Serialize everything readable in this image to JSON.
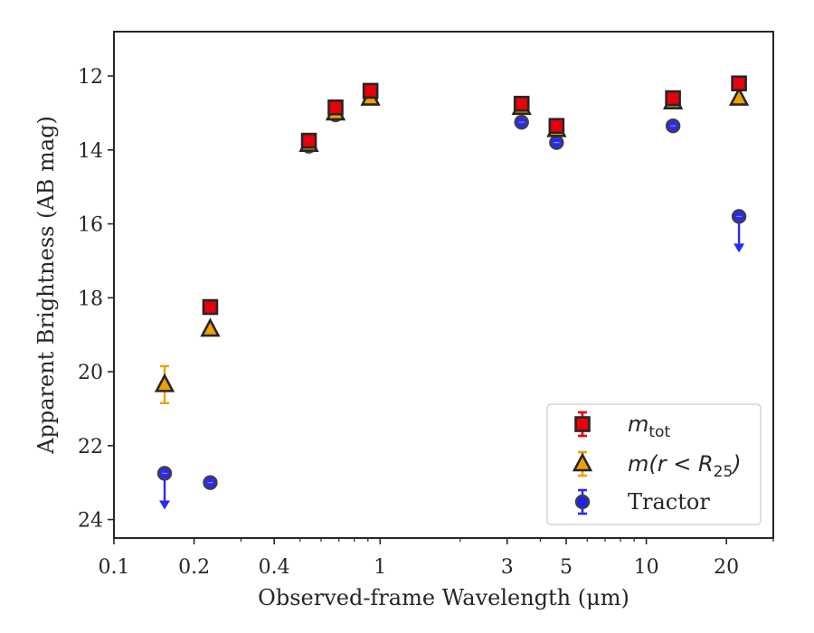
{
  "chart_data": {
    "type": "scatter",
    "xlabel": "Observed-frame Wavelength (μm)",
    "ylabel": "Apparent Brightness (AB mag)",
    "x_scale": "log",
    "xlim": [
      0.1,
      30
    ],
    "ylim": [
      24.5,
      10.8
    ],
    "y_inverted": true,
    "x_ticks": [
      {
        "value": 0.1,
        "label": "0.1"
      },
      {
        "value": 0.2,
        "label": "0.2"
      },
      {
        "value": 0.4,
        "label": "0.4"
      },
      {
        "value": 1,
        "label": "1"
      },
      {
        "value": 3,
        "label": "3"
      },
      {
        "value": 5,
        "label": "5"
      },
      {
        "value": 10,
        "label": "10"
      },
      {
        "value": 20,
        "label": "20"
      }
    ],
    "y_ticks": [
      12,
      14,
      16,
      18,
      20,
      22,
      24
    ],
    "grid": false,
    "legend_position": "bottom-right",
    "series": [
      {
        "name": "m_tot",
        "marker": "square",
        "color": "#e8000b",
        "edge_color": "#262626",
        "error_color": "#e8000b",
        "points": [
          {
            "x": 0.23,
            "y": 18.25
          },
          {
            "x": 0.54,
            "y": 13.75
          },
          {
            "x": 0.68,
            "y": 12.85
          },
          {
            "x": 0.92,
            "y": 12.4
          },
          {
            "x": 3.4,
            "y": 12.75
          },
          {
            "x": 4.6,
            "y": 13.35
          },
          {
            "x": 12.6,
            "y": 12.6
          },
          {
            "x": 22.3,
            "y": 12.2
          }
        ]
      },
      {
        "name": "m(r < R25)",
        "marker": "triangle",
        "color": "#f0a000",
        "edge_color": "#262626",
        "error_color": "#f0a000",
        "points": [
          {
            "x": 0.155,
            "y": 20.35,
            "yerr": 0.5
          },
          {
            "x": 0.23,
            "y": 18.85
          },
          {
            "x": 0.54,
            "y": 13.85
          },
          {
            "x": 0.68,
            "y": 13.0
          },
          {
            "x": 0.92,
            "y": 12.6
          },
          {
            "x": 3.4,
            "y": 12.85
          },
          {
            "x": 4.6,
            "y": 13.45
          },
          {
            "x": 12.6,
            "y": 12.7
          },
          {
            "x": 22.3,
            "y": 12.6
          }
        ]
      },
      {
        "name": "Tractor",
        "marker": "circle",
        "color": "#1f1ff0",
        "edge_color": "#404040",
        "error_color": "#2a2af5",
        "points": [
          {
            "x": 0.155,
            "y": 22.75,
            "upper_limit": true
          },
          {
            "x": 0.23,
            "y": 23.0
          },
          {
            "x": 0.54,
            "y": 13.9
          },
          {
            "x": 0.68,
            "y": 13.05
          },
          {
            "x": 0.92,
            "y": 12.6
          },
          {
            "x": 3.4,
            "y": 13.25
          },
          {
            "x": 4.6,
            "y": 13.8
          },
          {
            "x": 12.6,
            "y": 13.35
          },
          {
            "x": 22.3,
            "y": 15.8,
            "upper_limit": true
          }
        ]
      }
    ],
    "legend": {
      "entries": [
        {
          "series": "m_tot",
          "base": "m",
          "sub": "tot",
          "tail": ""
        },
        {
          "series": "m(r < R25)",
          "base": "m(r < R",
          "sub": "25",
          "tail": ")"
        },
        {
          "series": "Tractor",
          "text": "Tractor"
        }
      ]
    }
  }
}
